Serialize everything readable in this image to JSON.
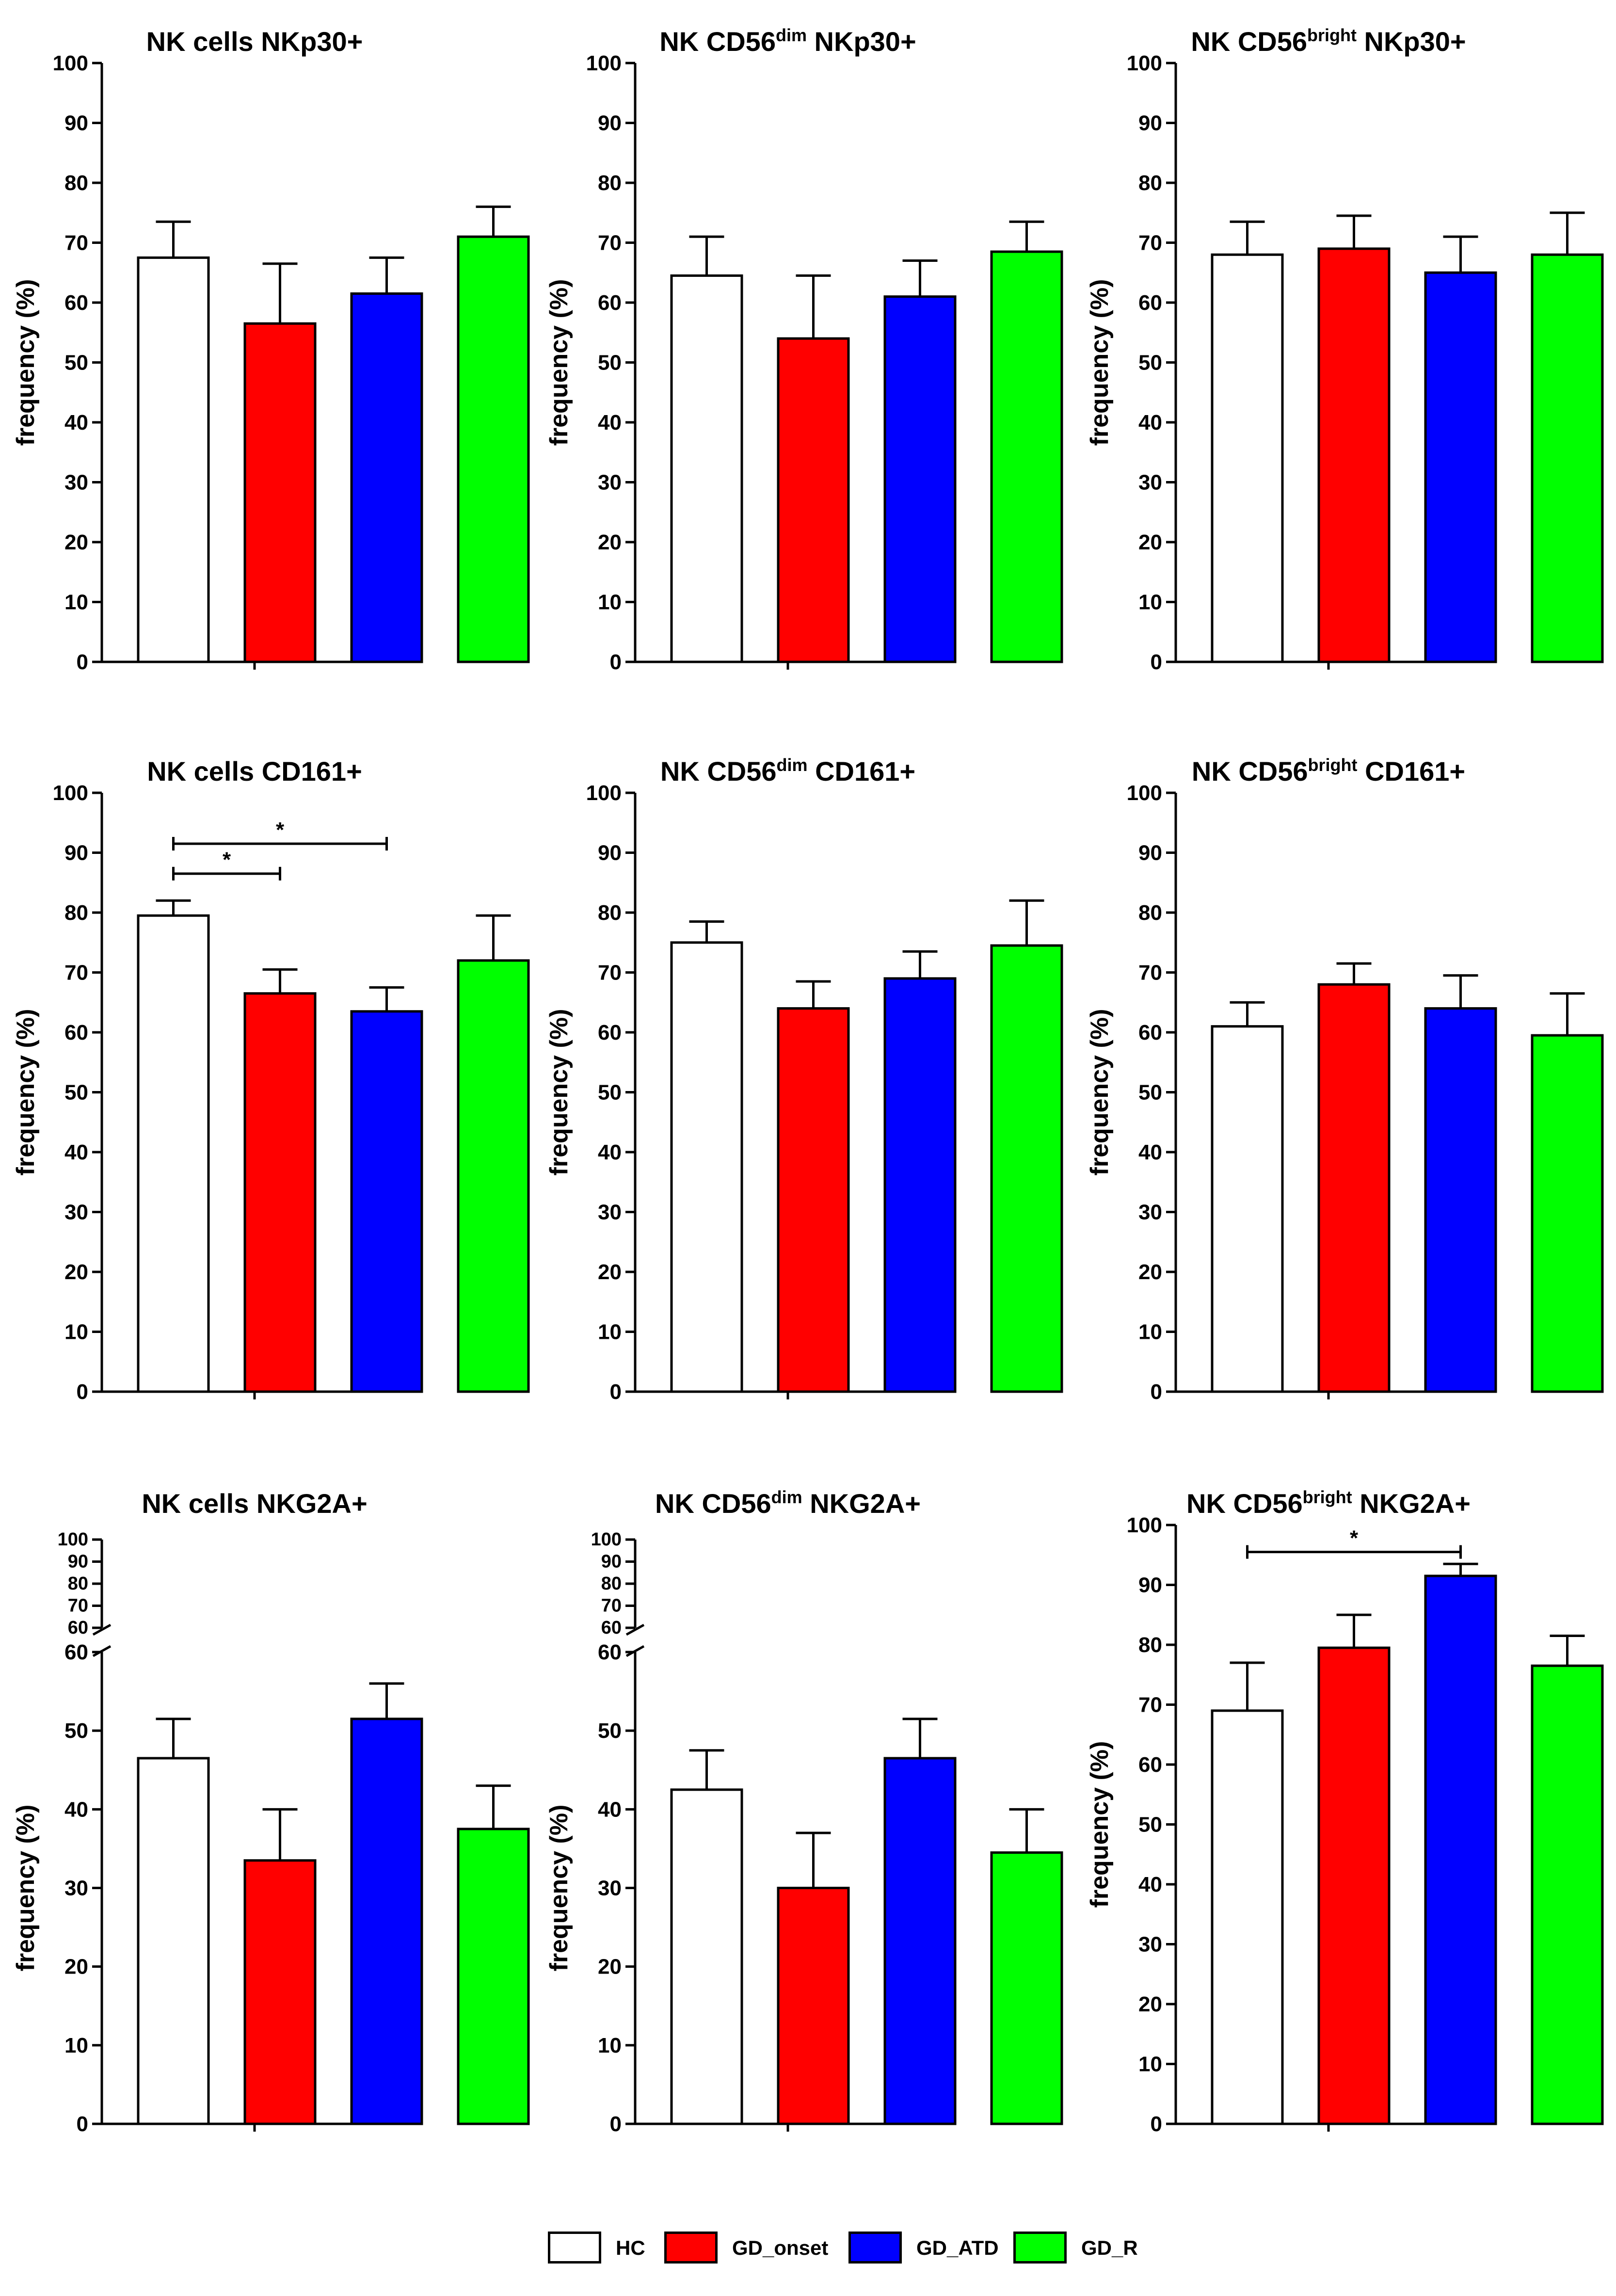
{
  "ylabel": "frequency (%)",
  "groups": [
    "HC",
    "GD_onset",
    "GD_ATD",
    "GD_R"
  ],
  "colors": {
    "HC": "#ffffff",
    "GD_onset": "#ff0000",
    "GD_ATD": "#0000ff",
    "GD_R": "#00ff00"
  },
  "chart_data": [
    {
      "type": "bar",
      "title": "NK cells NKp30+",
      "title_parts": [
        "NK cells NKp30+"
      ],
      "categories": [
        "HC",
        "GD_onset",
        "GD_ATD",
        "GD_R"
      ],
      "values": [
        67.5,
        56.5,
        61.5,
        71.0
      ],
      "errors": [
        6.0,
        10.0,
        6.0,
        5.0
      ],
      "ylim": [
        0,
        100
      ],
      "yticks": [
        "0",
        "10",
        "20",
        "30",
        "40",
        "50",
        "60",
        "70",
        "80",
        "90",
        "100"
      ],
      "ylabel": "frequency (%)",
      "significance": []
    },
    {
      "type": "bar",
      "title": "NK CD56dim NKp30+",
      "title_parts": [
        "NK CD56",
        "dim",
        " NKp30+"
      ],
      "categories": [
        "HC",
        "GD_onset",
        "GD_ATD",
        "GD_R"
      ],
      "values": [
        64.5,
        54.0,
        61.0,
        68.5
      ],
      "errors": [
        6.5,
        10.5,
        6.0,
        5.0
      ],
      "ylim": [
        0,
        100
      ],
      "yticks": [
        "0",
        "10",
        "20",
        "30",
        "40",
        "50",
        "60",
        "70",
        "80",
        "90",
        "100"
      ],
      "ylabel": "frequency (%)",
      "significance": []
    },
    {
      "type": "bar",
      "title": "NK CD56bright NKp30+",
      "title_parts": [
        "NK CD56",
        "bright",
        " NKp30+"
      ],
      "categories": [
        "HC",
        "GD_onset",
        "GD_ATD",
        "GD_R"
      ],
      "values": [
        68.0,
        69.0,
        65.0,
        68.0
      ],
      "errors": [
        5.5,
        5.5,
        6.0,
        7.0
      ],
      "ylim": [
        0,
        100
      ],
      "yticks": [
        "0",
        "10",
        "20",
        "30",
        "40",
        "50",
        "60",
        "70",
        "80",
        "90",
        "100"
      ],
      "ylabel": "frequency (%)",
      "significance": []
    },
    {
      "type": "bar",
      "title": "NK cells CD161+",
      "title_parts": [
        "NK cells CD161+"
      ],
      "categories": [
        "HC",
        "GD_onset",
        "GD_ATD",
        "GD_R"
      ],
      "values": [
        79.5,
        66.5,
        63.5,
        72.0
      ],
      "errors": [
        2.5,
        4.0,
        4.0,
        7.5
      ],
      "ylim": [
        0,
        100
      ],
      "yticks": [
        "0",
        "10",
        "20",
        "30",
        "40",
        "50",
        "60",
        "70",
        "80",
        "90",
        "100"
      ],
      "ylabel": "frequency (%)",
      "significance": [
        {
          "from": 0,
          "to": 1,
          "y": 86.5,
          "label": "*"
        },
        {
          "from": 0,
          "to": 2,
          "y": 91.5,
          "label": "*"
        }
      ]
    },
    {
      "type": "bar",
      "title": "NK CD56dim CD161+",
      "title_parts": [
        "NK CD56",
        "dim",
        " CD161+"
      ],
      "categories": [
        "HC",
        "GD_onset",
        "GD_ATD",
        "GD_R"
      ],
      "values": [
        75.0,
        64.0,
        69.0,
        74.5
      ],
      "errors": [
        3.5,
        4.5,
        4.5,
        7.5
      ],
      "ylim": [
        0,
        100
      ],
      "yticks": [
        "0",
        "10",
        "20",
        "30",
        "40",
        "50",
        "60",
        "70",
        "80",
        "90",
        "100"
      ],
      "ylabel": "frequency (%)",
      "significance": []
    },
    {
      "type": "bar",
      "title": "NK CD56bright CD161+",
      "title_parts": [
        "NK CD56",
        "bright",
        " CD161+"
      ],
      "categories": [
        "HC",
        "GD_onset",
        "GD_ATD",
        "GD_R"
      ],
      "values": [
        61.0,
        68.0,
        64.0,
        59.5
      ],
      "errors": [
        4.0,
        3.5,
        5.5,
        7.0
      ],
      "ylim": [
        0,
        100
      ],
      "yticks": [
        "0",
        "10",
        "20",
        "30",
        "40",
        "50",
        "60",
        "70",
        "80",
        "90",
        "100"
      ],
      "ylabel": "frequency (%)",
      "significance": []
    },
    {
      "type": "bar",
      "title": "NK cells NKG2A+",
      "title_parts": [
        "NK cells NKG2A+"
      ],
      "categories": [
        "HC",
        "GD_onset",
        "GD_ATD",
        "GD_R"
      ],
      "values": [
        46.5,
        33.5,
        51.5,
        37.5
      ],
      "errors": [
        5.0,
        6.5,
        4.5,
        5.5
      ],
      "ylim": [
        0,
        60
      ],
      "axis_break": true,
      "ylim_upper": [
        60,
        100
      ],
      "yticks": [
        "0",
        "10",
        "20",
        "30",
        "40",
        "50",
        "60"
      ],
      "yticks_upper": [
        "60",
        "70",
        "80",
        "90",
        "100"
      ],
      "ylabel": "frequency (%)",
      "significance": []
    },
    {
      "type": "bar",
      "title": "NK CD56dim NKG2A+",
      "title_parts": [
        "NK CD56",
        "dim",
        " NKG2A+"
      ],
      "categories": [
        "HC",
        "GD_onset",
        "GD_ATD",
        "GD_R"
      ],
      "values": [
        42.5,
        30.0,
        46.5,
        34.5
      ],
      "errors": [
        5.0,
        7.0,
        5.0,
        5.5
      ],
      "ylim": [
        0,
        60
      ],
      "axis_break": true,
      "ylim_upper": [
        60,
        100
      ],
      "yticks": [
        "0",
        "10",
        "20",
        "30",
        "40",
        "50",
        "60"
      ],
      "yticks_upper": [
        "60",
        "70",
        "80",
        "90",
        "100"
      ],
      "ylabel": "frequency (%)",
      "significance": []
    },
    {
      "type": "bar",
      "title": "NK CD56bright NKG2A+",
      "title_parts": [
        "NK CD56",
        "bright",
        " NKG2A+"
      ],
      "categories": [
        "HC",
        "GD_onset",
        "GD_ATD",
        "GD_R"
      ],
      "values": [
        69.0,
        79.5,
        91.5,
        76.5
      ],
      "errors": [
        8.0,
        5.5,
        2.0,
        5.0
      ],
      "ylim": [
        0,
        100
      ],
      "yticks": [
        "0",
        "10",
        "20",
        "30",
        "40",
        "50",
        "60",
        "70",
        "80",
        "90",
        "100"
      ],
      "ylabel": "frequency (%)",
      "significance": [
        {
          "from": 0,
          "to": 2,
          "y": 95.5,
          "label": "*"
        }
      ]
    }
  ],
  "legend": [
    {
      "label": "HC",
      "color": "#ffffff"
    },
    {
      "label": "GD_onset",
      "color": "#ff0000"
    },
    {
      "label": "GD_ATD",
      "color": "#0000ff"
    },
    {
      "label": "GD_R",
      "color": "#00ff00"
    }
  ]
}
